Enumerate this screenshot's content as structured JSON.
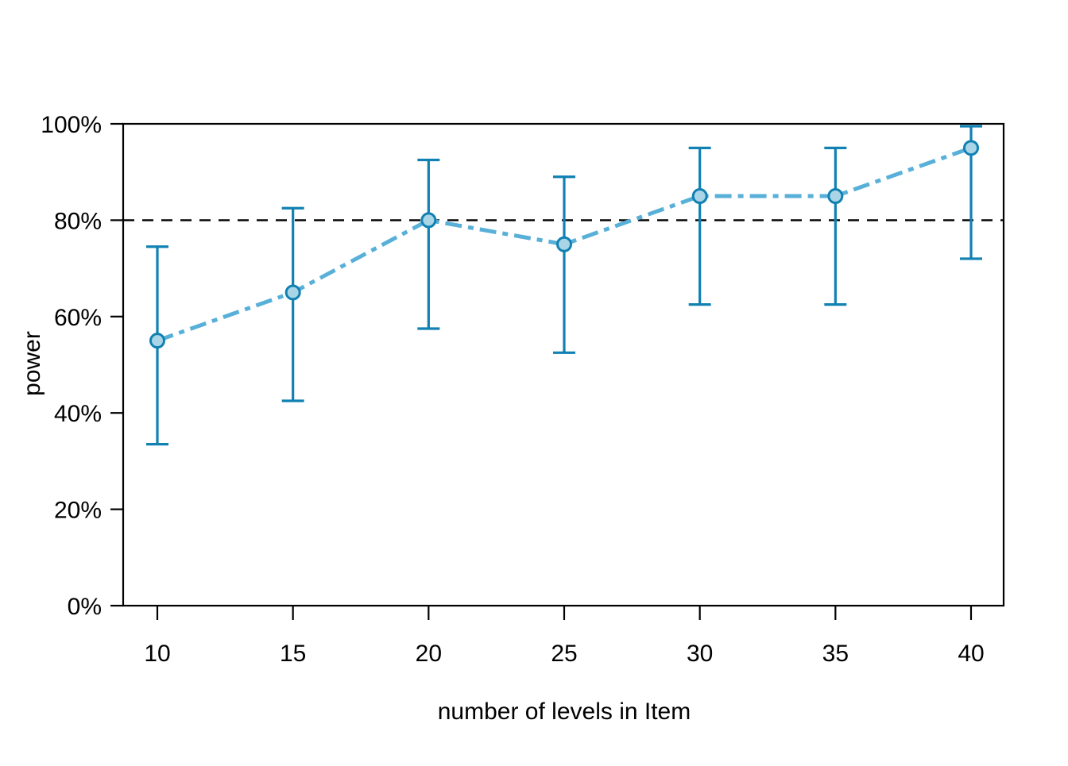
{
  "chart_data": {
    "type": "line",
    "title": "",
    "xlabel": "number of levels in Item",
    "ylabel": "power",
    "x": [
      10,
      15,
      20,
      25,
      30,
      35,
      40
    ],
    "x_tick_labels": [
      "10",
      "15",
      "20",
      "25",
      "30",
      "35",
      "40"
    ],
    "y_ticks": [
      0,
      20,
      40,
      60,
      80,
      100
    ],
    "y_tick_labels": [
      "0%",
      "20%",
      "40%",
      "60%",
      "80%",
      "100%"
    ],
    "ylim": [
      0,
      100
    ],
    "series": [
      {
        "name": "power",
        "values": [
          55,
          65,
          80,
          75,
          85,
          85,
          95
        ],
        "ci_lower": [
          33.5,
          42.5,
          57.5,
          52.5,
          62.5,
          62.5,
          72
        ],
        "ci_upper": [
          74.5,
          82.5,
          92.5,
          89,
          95,
          95,
          99.5
        ]
      }
    ],
    "reference_line_y": 80,
    "grid": false,
    "legend": "none",
    "line_style": "dash-dot",
    "marker": "circle",
    "colors": {
      "line": "#58b0d8",
      "errorbar": "#1081b2",
      "marker_fill": "#a9d5e7",
      "marker_stroke": "#1081b2",
      "reference_line": "#000000",
      "axis": "#000000"
    }
  }
}
